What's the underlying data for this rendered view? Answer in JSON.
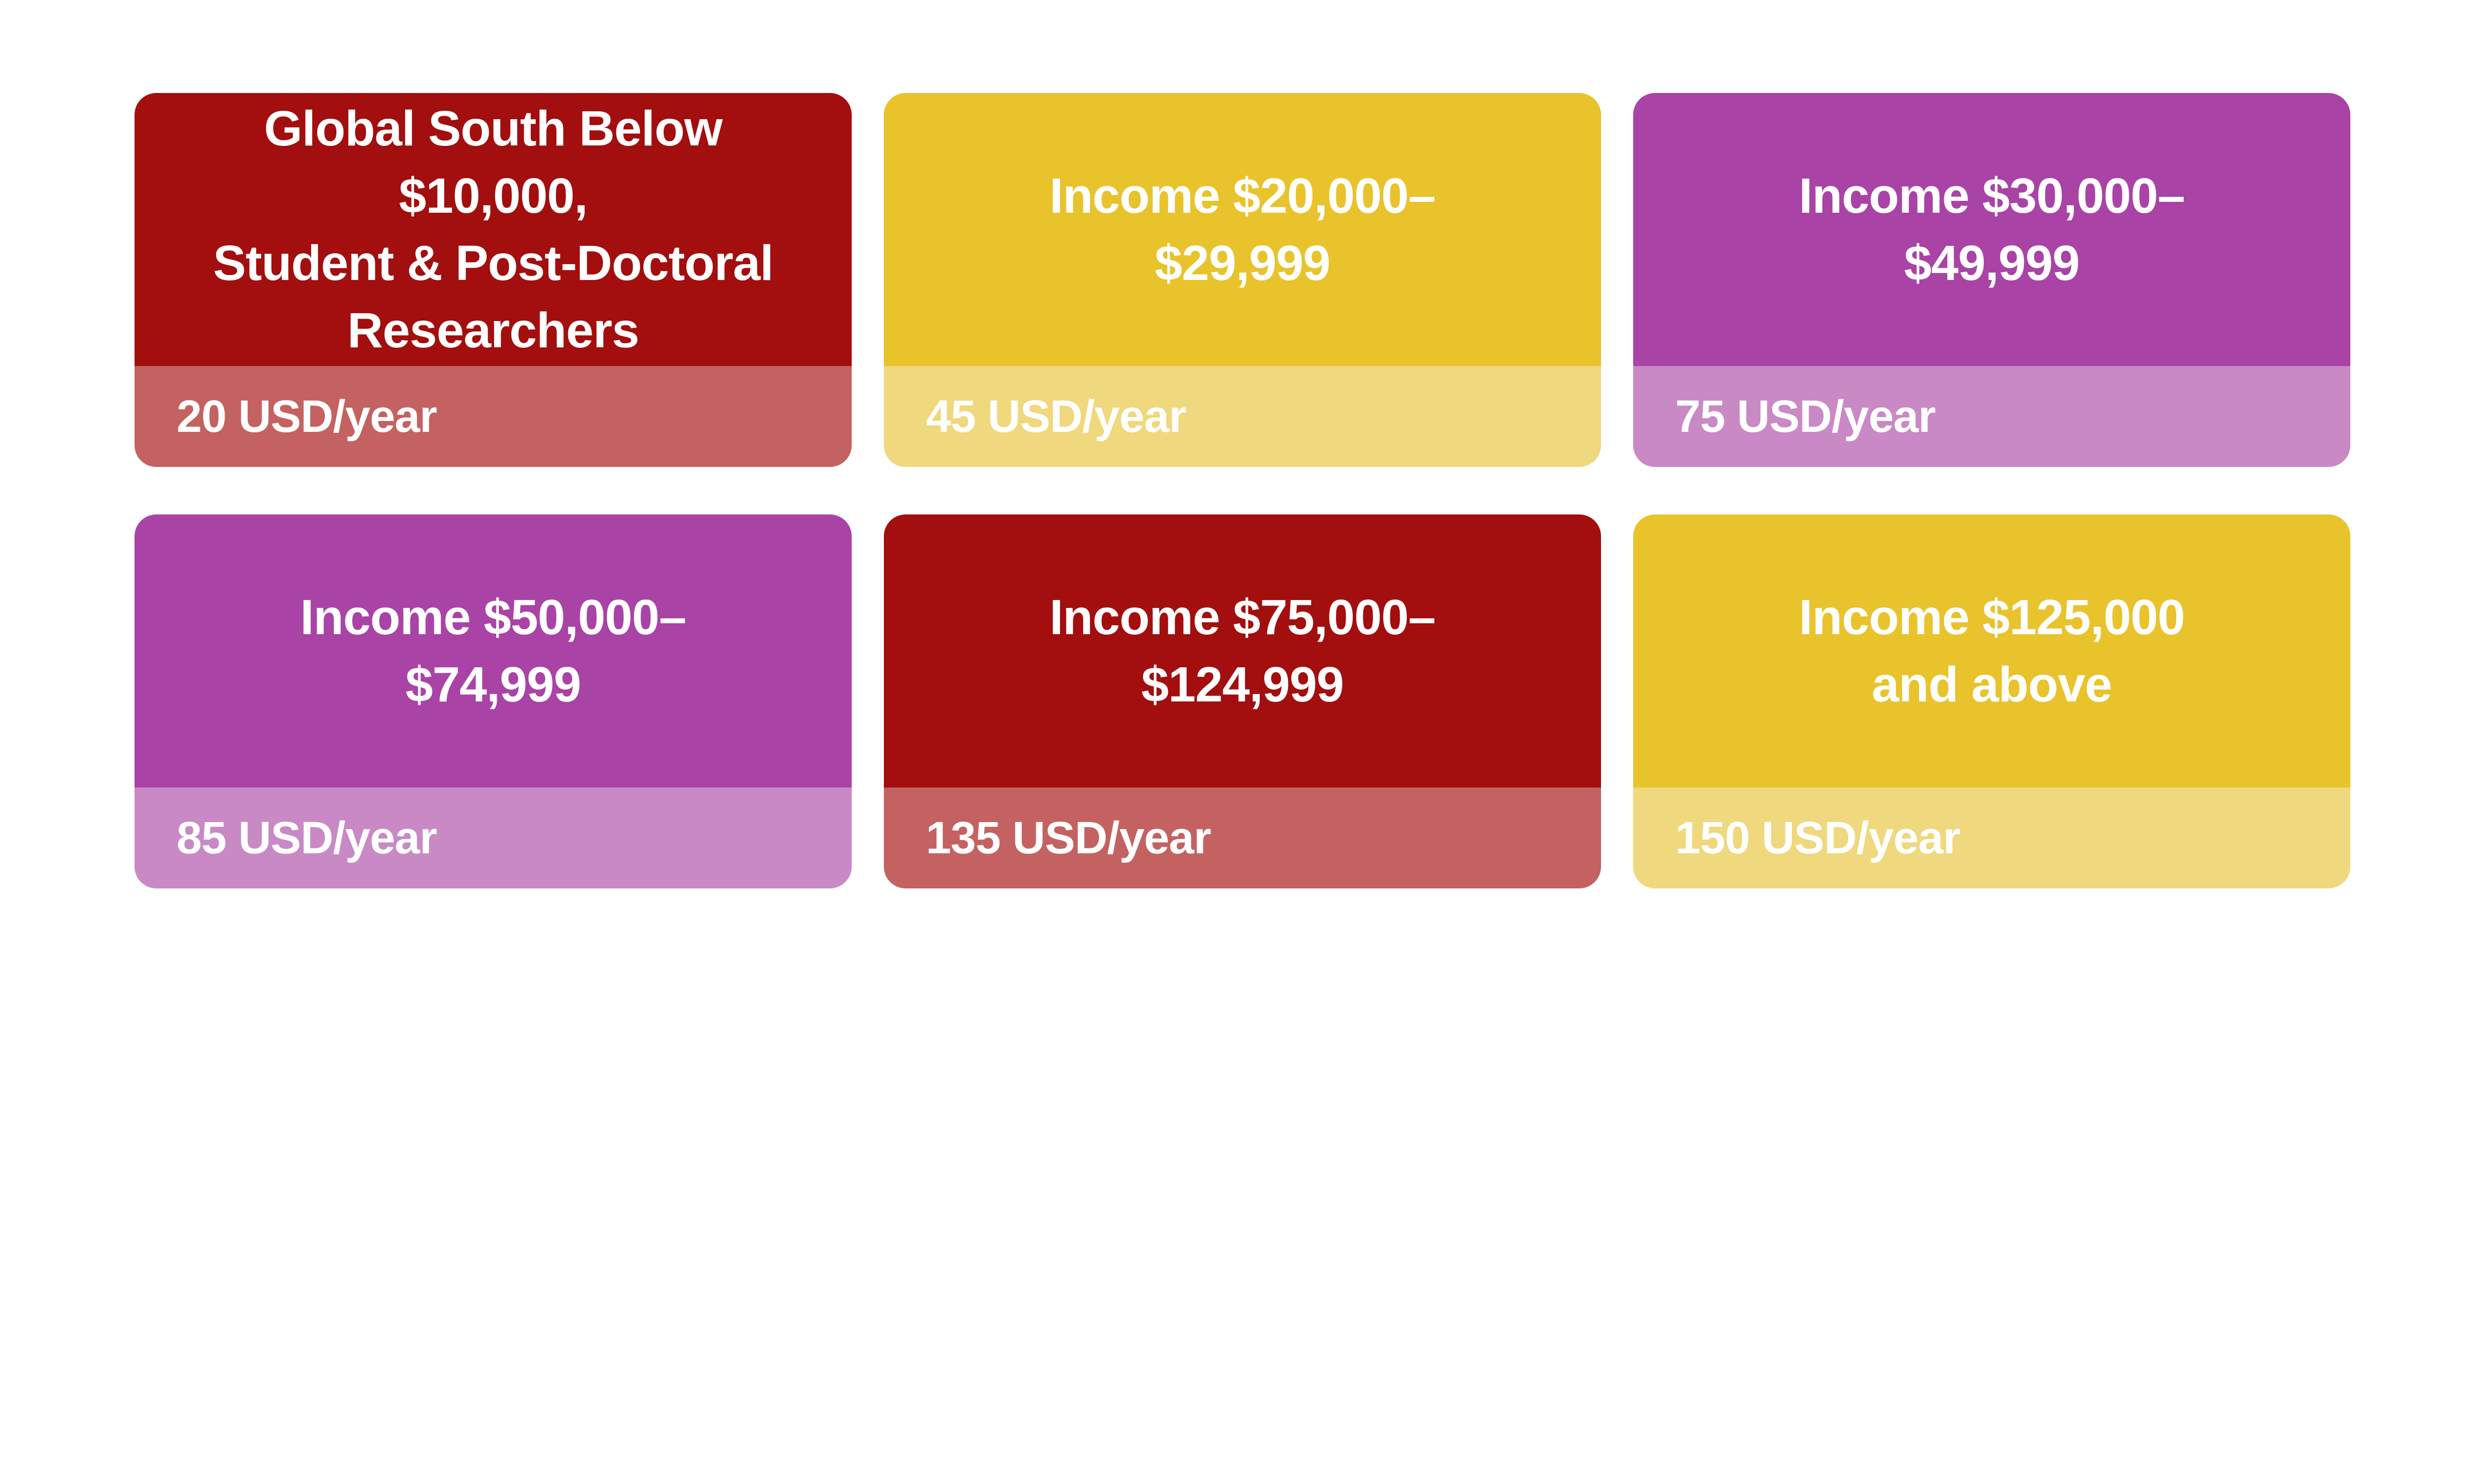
{
  "page": {
    "background_color": "#FFFFFF",
    "text_color": "#FFFFFF",
    "description_colors": {
      "dark_red": "#A30E0E",
      "dark_red_tint": "#C46261",
      "gold": "#E8C32C",
      "gold_tint": "#EFD87D",
      "magenta": "#A943A6",
      "magenta_tint": "#C889C5"
    }
  },
  "cards": [
    {
      "title": "Global South Below\n$10,000,\nStudent & Post-Doctoral\nResearchers",
      "price": "20 USD/year",
      "header_color": "#A30E0E",
      "footer_color": "#C46261",
      "color_name": "dark-red"
    },
    {
      "title": "Income $20,000–\n$29,999",
      "price": "45 USD/year",
      "header_color": "#E8C32C",
      "footer_color": "#EFD87D",
      "color_name": "gold"
    },
    {
      "title": "Income $30,000–\n$49,999",
      "price": "75 USD/year",
      "header_color": "#A943A6",
      "footer_color": "#C889C5",
      "color_name": "magenta"
    },
    {
      "title": "Income $50,000–\n$74,999",
      "price": "85 USD/year",
      "header_color": "#A943A6",
      "footer_color": "#C889C5",
      "color_name": "magenta"
    },
    {
      "title": "Income $75,000–\n$124,999",
      "price": "135 USD/year",
      "header_color": "#A30E0E",
      "footer_color": "#C46261",
      "color_name": "dark-red"
    },
    {
      "title": "Income $125,000\nand above",
      "price": "150 USD/year",
      "header_color": "#E8C32C",
      "footer_color": "#EFD87D",
      "color_name": "gold"
    }
  ]
}
